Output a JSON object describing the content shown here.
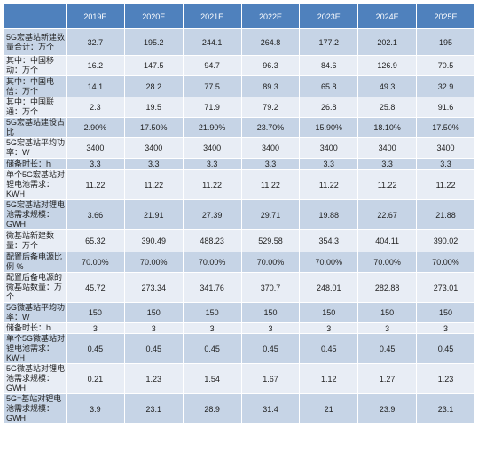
{
  "columns": [
    "",
    "2019E",
    "2020E",
    "2021E",
    "2022E",
    "2023E",
    "2024E",
    "2025E"
  ],
  "rows": [
    {
      "label": "5G宏基站新建数量合计：万个",
      "values": [
        "32.7",
        "195.2",
        "244.1",
        "264.8",
        "177.2",
        "202.1",
        "195"
      ]
    },
    {
      "label": "其中：中国移动：万个",
      "values": [
        "16.2",
        "147.5",
        "94.7",
        "96.3",
        "84.6",
        "126.9",
        "70.5"
      ]
    },
    {
      "label": "其中：中国电信：万个",
      "values": [
        "14.1",
        "28.2",
        "77.5",
        "89.3",
        "65.8",
        "49.3",
        "32.9"
      ]
    },
    {
      "label": "其中：中国联通：万个",
      "values": [
        "2.3",
        "19.5",
        "71.9",
        "79.2",
        "26.8",
        "25.8",
        "91.6"
      ]
    },
    {
      "label": "5G宏基站建设占比",
      "values": [
        "2.90%",
        "17.50%",
        "21.90%",
        "23.70%",
        "15.90%",
        "18.10%",
        "17.50%"
      ]
    },
    {
      "label": "5G宏基站平均功率：W",
      "values": [
        "3400",
        "3400",
        "3400",
        "3400",
        "3400",
        "3400",
        "3400"
      ]
    },
    {
      "label": "储备时长：h",
      "values": [
        "3.3",
        "3.3",
        "3.3",
        "3.3",
        "3.3",
        "3.3",
        "3.3"
      ]
    },
    {
      "label": "单个5G宏基站对锂电池需求：KWH",
      "values": [
        "11.22",
        "11.22",
        "11.22",
        "11.22",
        "11.22",
        "11.22",
        "11.22"
      ]
    },
    {
      "label": "5G宏基站对锂电池需求规模：GWH",
      "values": [
        "3.66",
        "21.91",
        "27.39",
        "29.71",
        "19.88",
        "22.67",
        "21.88"
      ]
    },
    {
      "label": "微基站新建数量：万个",
      "values": [
        "65.32",
        "390.49",
        "488.23",
        "529.58",
        "354.3",
        "404.11",
        "390.02"
      ]
    },
    {
      "label": "配置后备电源比例 %",
      "values": [
        "70.00%",
        "70.00%",
        "70.00%",
        "70.00%",
        "70.00%",
        "70.00%",
        "70.00%"
      ]
    },
    {
      "label": "配置后备电源的微基站数量：万个",
      "values": [
        "45.72",
        "273.34",
        "341.76",
        "370.7",
        "248.01",
        "282.88",
        "273.01"
      ]
    },
    {
      "label": "5G微基站平均功率：W",
      "values": [
        "150",
        "150",
        "150",
        "150",
        "150",
        "150",
        "150"
      ]
    },
    {
      "label": "储备时长：h",
      "values": [
        "3",
        "3",
        "3",
        "3",
        "3",
        "3",
        "3"
      ]
    },
    {
      "label": "单个5G微基站对锂电池需求：KWH",
      "values": [
        "0.45",
        "0.45",
        "0.45",
        "0.45",
        "0.45",
        "0.45",
        "0.45"
      ]
    },
    {
      "label": "5G微基站对锂电池需求规模：GWH",
      "values": [
        "0.21",
        "1.23",
        "1.54",
        "1.67",
        "1.12",
        "1.27",
        "1.23"
      ]
    },
    {
      "label": "5G=基站对锂电池需求规模：GWH",
      "values": [
        "3.9",
        "23.1",
        "28.9",
        "31.4",
        "21",
        "23.9",
        "23.1"
      ]
    }
  ],
  "colors": {
    "header": "#4f81bd",
    "row_dark": "#c6d4e6",
    "row_light": "#e8edf5"
  }
}
